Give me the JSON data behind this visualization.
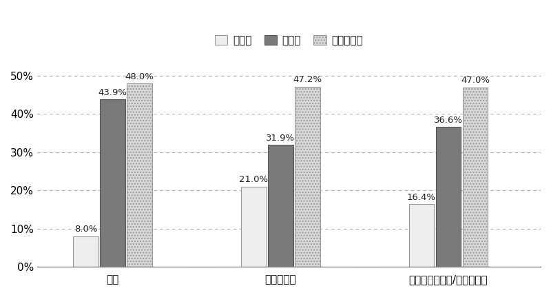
{
  "categories": [
    "学生",
    "社会人単身",
    "社会人カップル/ファミリー"
  ],
  "series": {
    "増えた": [
      8.0,
      21.0,
      16.4
    ],
    "減った": [
      43.9,
      31.9,
      36.6
    ],
    "変わらない": [
      48.0,
      47.2,
      47.0
    ]
  },
  "bar_colors": {
    "増えた": "#eeeeee",
    "減った": "#7a7a7a",
    "変わらない": "#d8d8d8"
  },
  "bar_edgecolors": {
    "増えた": "#999999",
    "減った": "#555555",
    "変わらない": "#999999"
  },
  "legend_labels": [
    "増えた",
    "減った",
    "変わらない"
  ],
  "ylim": [
    0,
    55
  ],
  "yticks": [
    0,
    10,
    20,
    30,
    40,
    50
  ],
  "ytick_labels": [
    "0%",
    "10%",
    "20%",
    "30%",
    "40%",
    "50%"
  ],
  "bar_width": 0.15,
  "x_positions": [
    0.18,
    0.5,
    0.82
  ],
  "background_color": "#ffffff",
  "grid_color": "#aaaaaa",
  "font_size_legend": 11,
  "font_size_ticks": 11,
  "font_size_values": 9.5
}
